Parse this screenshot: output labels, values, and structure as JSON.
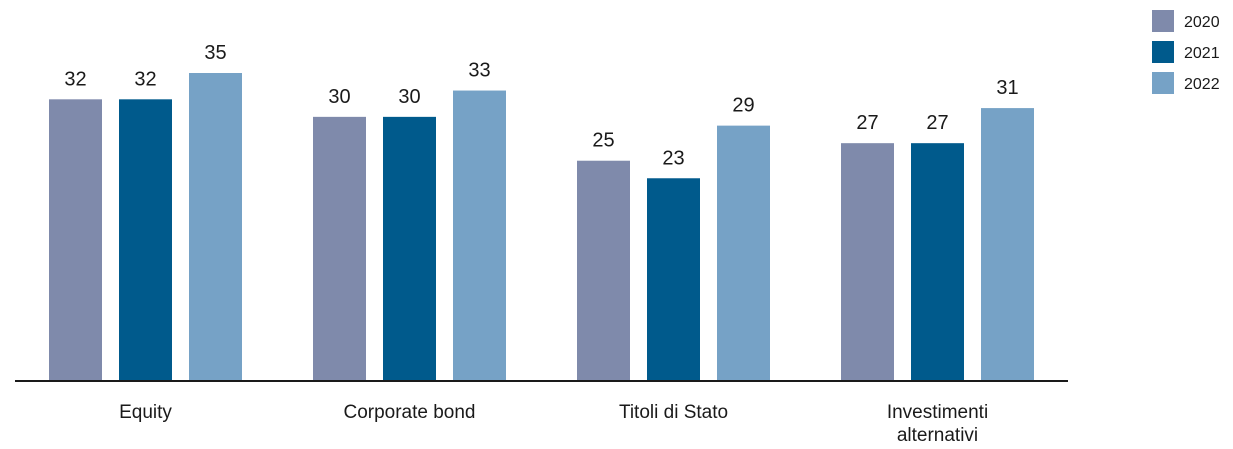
{
  "chart_data": {
    "type": "bar",
    "categories": [
      [
        "Equity"
      ],
      [
        "Corporate bond"
      ],
      [
        "Titoli di Stato"
      ],
      [
        "Investimenti",
        "alternativi"
      ]
    ],
    "series": [
      {
        "name": "2020",
        "color": "#7f8aab",
        "values": [
          32,
          30,
          25,
          27
        ]
      },
      {
        "name": "2021",
        "color": "#005a8c",
        "values": [
          32,
          30,
          23,
          27
        ]
      },
      {
        "name": "2022",
        "color": "#76a2c6",
        "values": [
          35,
          33,
          29,
          31
        ]
      }
    ],
    "ylim": [
      0,
      35
    ],
    "grid": false,
    "legend": "top-right",
    "data_labels": true
  }
}
